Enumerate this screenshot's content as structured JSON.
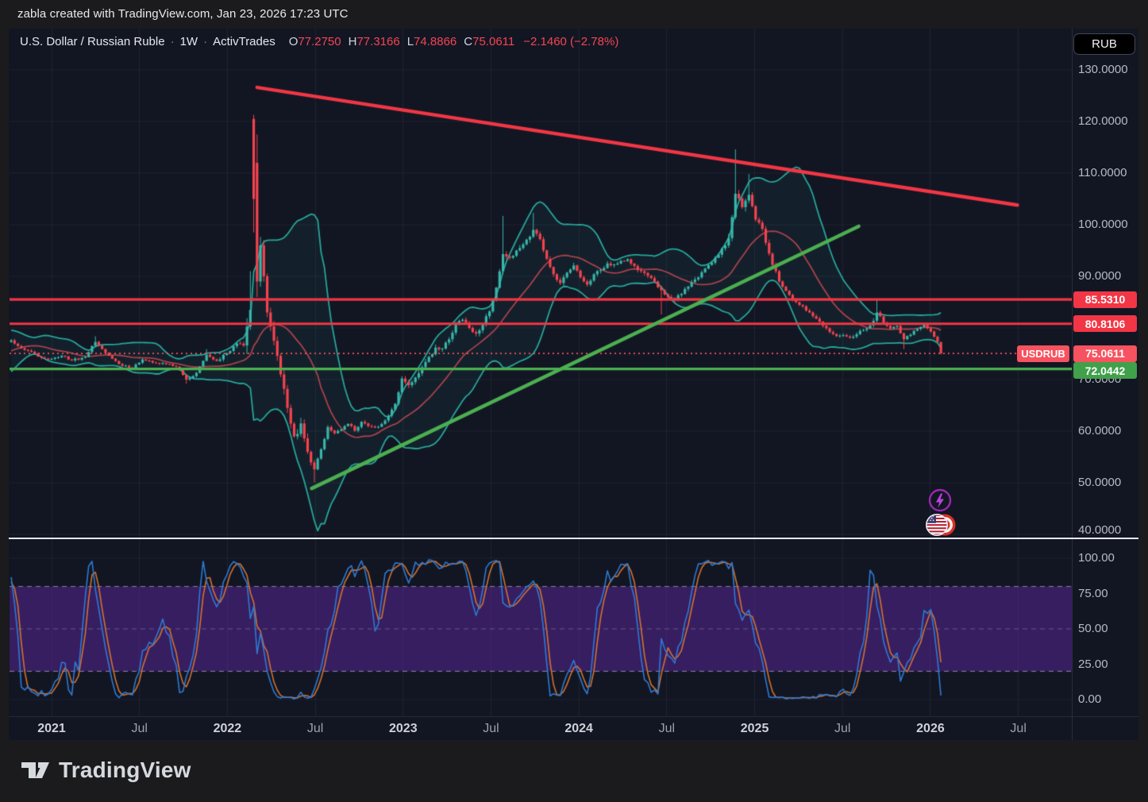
{
  "attribution": "zabla created with TradingView.com, Jan 23, 2026 17:23 UTC",
  "header": {
    "title": "U.S. Dollar / Russian Ruble",
    "separator": "·",
    "interval": "1W",
    "feed": "ActivTrades",
    "ohlc": [
      {
        "key": "O",
        "value": "77.2750"
      },
      {
        "key": "H",
        "value": "77.3166"
      },
      {
        "key": "L",
        "value": "74.8866"
      },
      {
        "key": "C",
        "value": "75.0611"
      }
    ],
    "change": "−2.1460 (−2.78%)"
  },
  "price_axis": {
    "currency_button": "RUB",
    "ticks": [
      {
        "text": "130.0000",
        "price": 130
      },
      {
        "text": "120.0000",
        "price": 120
      },
      {
        "text": "110.0000",
        "price": 110
      },
      {
        "text": "100.0000",
        "price": 100
      },
      {
        "text": "90.0000",
        "price": 90
      },
      {
        "text": "70.0000",
        "price": 70
      },
      {
        "text": "60.0000",
        "price": 60
      },
      {
        "text": "50.0000",
        "price": 50
      },
      {
        "text": "40.0000",
        "price": 40.8
      }
    ],
    "line_labels": [
      {
        "text": "85.5310",
        "price": 85.531,
        "bg": "#f23645"
      },
      {
        "text": "80.8106",
        "price": 80.8106,
        "bg": "#f23645"
      },
      {
        "text": "72.0442",
        "price": 71.73,
        "bg": "#41a04a"
      }
    ],
    "last_price": {
      "tag": "USDRUB",
      "text": "75.0611",
      "price": 75.0611,
      "bg": "#f7525f"
    }
  },
  "indicator_axis": {
    "ticks": [
      {
        "text": "100.00",
        "value": 100
      },
      {
        "text": "75.00",
        "value": 75
      },
      {
        "text": "50.00",
        "value": 50
      },
      {
        "text": "25.00",
        "value": 25
      },
      {
        "text": "0.00",
        "value": 0
      }
    ]
  },
  "time_axis": {
    "labels": [
      {
        "text": "2021",
        "week": 0,
        "major": true
      },
      {
        "text": "Jul",
        "week": 26.09,
        "major": false
      },
      {
        "text": "2022",
        "week": 52.18,
        "major": true
      },
      {
        "text": "Jul",
        "week": 78.27,
        "major": false
      },
      {
        "text": "2023",
        "week": 104.36,
        "major": true
      },
      {
        "text": "Jul",
        "week": 130.45,
        "major": false
      },
      {
        "text": "2024",
        "week": 156.53,
        "major": true
      },
      {
        "text": "Jul",
        "week": 182.62,
        "major": false
      },
      {
        "text": "2025",
        "week": 208.71,
        "major": true
      },
      {
        "text": "Jul",
        "week": 234.8,
        "major": false
      },
      {
        "text": "2026",
        "week": 260.89,
        "major": true
      },
      {
        "text": "Jul",
        "week": 286.98,
        "major": false
      }
    ]
  },
  "footer": {
    "brand": "TradingView"
  },
  "chart_data": {
    "type": "candlestick",
    "symbol": "USDRUB",
    "interval": "1W",
    "colors": {
      "background": "#121623",
      "grid": "rgba(255,255,255,0.055)",
      "up": "#38b6aa",
      "down": "#f5434f",
      "bb_band": "#26a69a",
      "bb_fill": "rgba(38,166,154,0.07)",
      "bb_basis": "#a8414b",
      "red_line": "#f23645",
      "green_line": "#4caf50",
      "last_price_line": "#f5535d",
      "stoch_k": "#2d7ad2",
      "stoch_d": "#d3722e",
      "stoch_band_fill": "rgba(97,40,168,0.47)",
      "stoch_band_edge": "rgba(222,224,232,0.55)",
      "stoch_mid": "rgba(170,174,186,0.4)"
    },
    "price_pane": {
      "ylim": [
        40,
        130
      ],
      "grid_step": 10,
      "candles": {
        "first_week": -32,
        "draw_from_week": -12,
        "last_week": 264,
        "close_anchors": [
          [
            -32,
            71.3
          ],
          [
            -28,
            72.9
          ],
          [
            -24,
            75.4
          ],
          [
            -20,
            77.9
          ],
          [
            -16,
            76.3
          ],
          [
            -12,
            77.6
          ],
          [
            -9,
            76.1
          ],
          [
            -6,
            75.4
          ],
          [
            -3,
            74.2
          ],
          [
            0,
            74.0
          ],
          [
            3,
            74.6
          ],
          [
            6,
            73.7
          ],
          [
            10,
            74.4
          ],
          [
            13,
            77.3
          ],
          [
            16,
            75.2
          ],
          [
            20,
            73.0
          ],
          [
            24,
            72.2
          ],
          [
            27,
            73.9
          ],
          [
            31,
            73.2
          ],
          [
            34,
            73.0
          ],
          [
            37,
            72.5
          ],
          [
            40,
            70.0
          ],
          [
            43,
            71.3
          ],
          [
            46,
            74.8
          ],
          [
            49,
            73.6
          ],
          [
            52,
            75.1
          ],
          [
            55,
            77.0
          ],
          [
            57,
            76.6
          ],
          [
            59,
            83.5
          ],
          [
            60,
            105.0
          ],
          [
            61,
            89.0
          ],
          [
            62,
            96.0
          ],
          [
            63,
            90.0
          ],
          [
            64,
            83.0
          ],
          [
            66,
            77.5
          ],
          [
            68,
            71.0
          ],
          [
            70,
            64.5
          ],
          [
            72,
            59.0
          ],
          [
            74,
            61.5
          ],
          [
            76,
            56.0
          ],
          [
            78,
            52.6
          ],
          [
            80,
            56.5
          ],
          [
            82,
            60.8
          ],
          [
            84,
            59.6
          ],
          [
            86,
            60.3
          ],
          [
            88,
            61.4
          ],
          [
            90,
            60.1
          ],
          [
            92,
            61.8
          ],
          [
            94,
            61.0
          ],
          [
            96,
            60.7
          ],
          [
            98,
            61.4
          ],
          [
            100,
            63.0
          ],
          [
            102,
            65.3
          ],
          [
            104,
            70.2
          ],
          [
            106,
            68.9
          ],
          [
            108,
            70.4
          ],
          [
            110,
            72.4
          ],
          [
            112,
            74.4
          ],
          [
            114,
            76.2
          ],
          [
            116,
            76.0
          ],
          [
            118,
            77.8
          ],
          [
            120,
            80.7
          ],
          [
            122,
            81.6
          ],
          [
            124,
            80.0
          ],
          [
            126,
            78.9
          ],
          [
            128,
            80.6
          ],
          [
            130,
            83.2
          ],
          [
            132,
            87.8
          ],
          [
            134,
            94.3
          ],
          [
            136,
            93.6
          ],
          [
            138,
            95.0
          ],
          [
            140,
            96.2
          ],
          [
            143,
            99.0
          ],
          [
            145,
            97.2
          ],
          [
            147,
            93.4
          ],
          [
            149,
            90.4
          ],
          [
            151,
            88.7
          ],
          [
            153,
            90.7
          ],
          [
            155,
            92.1
          ],
          [
            157,
            89.8
          ],
          [
            159,
            88.4
          ],
          [
            161,
            90.4
          ],
          [
            163,
            91.2
          ],
          [
            165,
            92.5
          ],
          [
            167,
            92.3
          ],
          [
            169,
            93.0
          ],
          [
            171,
            93.3
          ],
          [
            173,
            92.0
          ],
          [
            175,
            91.0
          ],
          [
            177,
            90.1
          ],
          [
            179,
            89.0
          ],
          [
            181,
            87.3
          ],
          [
            183,
            86.0
          ],
          [
            185,
            85.4
          ],
          [
            187,
            86.6
          ],
          [
            189,
            88.0
          ],
          [
            191,
            89.4
          ],
          [
            193,
            90.8
          ],
          [
            195,
            92.2
          ],
          [
            197,
            93.6
          ],
          [
            199,
            95.4
          ],
          [
            201,
            97.4
          ],
          [
            203,
            106.0
          ],
          [
            205,
            103.4
          ],
          [
            207,
            105.8
          ],
          [
            209,
            101.0
          ],
          [
            211,
            99.2
          ],
          [
            213,
            94.4
          ],
          [
            215,
            91.0
          ],
          [
            217,
            88.0
          ],
          [
            219,
            86.4
          ],
          [
            221,
            85.0
          ],
          [
            223,
            84.2
          ],
          [
            225,
            83.0
          ],
          [
            227,
            81.8
          ],
          [
            229,
            80.4
          ],
          [
            231,
            79.2
          ],
          [
            233,
            78.4
          ],
          [
            235,
            78.6
          ],
          [
            237,
            78.1
          ],
          [
            239,
            78.8
          ],
          [
            241,
            79.6
          ],
          [
            243,
            80.5
          ],
          [
            245,
            83.0
          ],
          [
            247,
            81.0
          ],
          [
            249,
            79.9
          ],
          [
            251,
            80.4
          ],
          [
            253,
            77.8
          ],
          [
            255,
            78.7
          ],
          [
            257,
            79.8
          ],
          [
            259,
            80.6
          ],
          [
            261,
            79.3
          ],
          [
            262,
            78.3
          ],
          [
            263,
            77.3
          ],
          [
            264,
            75.0611
          ]
        ],
        "specials": {
          "13": {
            "h": 78.4
          },
          "40": {
            "l": 69.2
          },
          "46": {
            "h": 75.9
          },
          "59": {
            "h": 91.0
          },
          "60": {
            "o": 120.5,
            "c": 105.0,
            "h": 121.3,
            "l": 98.5
          },
          "61": {
            "o": 112.0,
            "c": 89.0,
            "h": 117.5,
            "l": 86.0
          },
          "78": {
            "l": 50.1
          },
          "134": {
            "h": 101.7
          },
          "143": {
            "h": 102.3
          },
          "181": {
            "l": 82.6
          },
          "203": {
            "h": 114.6
          },
          "207": {
            "h": 109.8
          },
          "245": {
            "h": 85.6
          },
          "253": {
            "l": 75.9
          },
          "264": {
            "o": 77.275,
            "h": 77.3166,
            "l": 74.8866,
            "c": 75.0611
          }
        },
        "volatility_eras": [
          [
            -32,
            0.5
          ],
          [
            50,
            0.7
          ],
          [
            58,
            2.8
          ],
          [
            64,
            2.0
          ],
          [
            79,
            0.6
          ],
          [
            100,
            0.8
          ],
          [
            104,
            1.0
          ],
          [
            148,
            0.9
          ],
          [
            156,
            0.8
          ],
          [
            199,
            1.5
          ],
          [
            209,
            1.2
          ],
          [
            217,
            0.7
          ],
          [
            243,
            0.9
          ],
          [
            247,
            0.55
          ],
          [
            261,
            0.5
          ]
        ]
      },
      "bollinger": {
        "length": 20,
        "mult": 2
      },
      "horizontal_lines": [
        {
          "price": 85.531,
          "color": "#f23645",
          "width": 3.2
        },
        {
          "price": 80.8106,
          "color": "#f23645",
          "width": 3.2
        },
        {
          "price": 72.0442,
          "color": "#4caf50",
          "width": 3.2
        }
      ],
      "last_price_line": {
        "price": 75.0611,
        "style": "dotted"
      },
      "trendlines": [
        {
          "from_week": 61,
          "from_price": 126.6,
          "to_week": 286.7,
          "to_price": 103.8,
          "color": "#f23645",
          "width": 4.5
        },
        {
          "from_week": 77.2,
          "from_price": 48.9,
          "to_week": 239.6,
          "to_price": 99.7,
          "color": "#4caf50",
          "width": 4.5
        }
      ]
    },
    "stochastic_pane": {
      "ylim": [
        0,
        100
      ],
      "k_length": 14,
      "d_smoothing": 3,
      "upper_band": 80,
      "lower_band": 20,
      "middle_band": 50,
      "grid_values": [
        100,
        0
      ]
    }
  }
}
